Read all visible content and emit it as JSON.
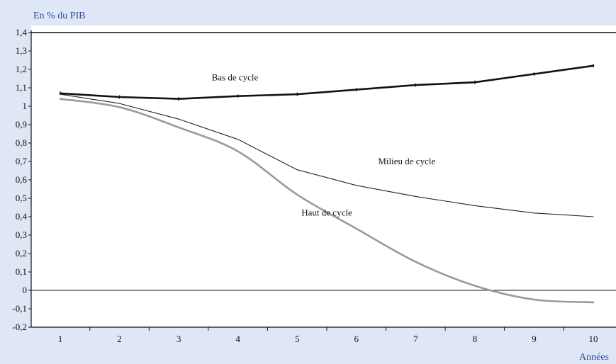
{
  "chart_data": {
    "type": "line",
    "title": "",
    "ylabel": "En % du PIB",
    "xlabel": "Années",
    "x": [
      1,
      2,
      3,
      4,
      5,
      6,
      7,
      8,
      9,
      10
    ],
    "x_ticks": [
      "1",
      "2",
      "3",
      "4",
      "5",
      "6",
      "7",
      "8",
      "9",
      "10"
    ],
    "ylim": [
      -0.2,
      1.4
    ],
    "y_ticks": [
      "-0,2",
      "-0,1",
      "0",
      "0,1",
      "0,2",
      "0,3",
      "0,4",
      "0,5",
      "0,6",
      "0,7",
      "0,8",
      "0,9",
      "1",
      "1,1",
      "1,2",
      "1,3",
      "1,4"
    ],
    "y_tick_values": [
      -0.2,
      -0.1,
      0,
      0.1,
      0.2,
      0.3,
      0.4,
      0.5,
      0.6,
      0.7,
      0.8,
      0.9,
      1.0,
      1.1,
      1.2,
      1.3,
      1.4
    ],
    "grid": false,
    "zero_line": true,
    "series": [
      {
        "name": "Bas de cycle",
        "values": [
          1.07,
          1.05,
          1.04,
          1.055,
          1.065,
          1.09,
          1.115,
          1.13,
          1.175,
          1.22
        ],
        "color": "#111111",
        "smooth": false,
        "label_at": [
          3.95,
          1.14
        ]
      },
      {
        "name": "Milieu de cycle",
        "values": [
          1.065,
          1.015,
          0.93,
          0.82,
          0.655,
          0.57,
          0.51,
          0.46,
          0.42,
          0.4
        ],
        "color": "#222222",
        "smooth": false,
        "label_at": [
          6.85,
          0.685
        ]
      },
      {
        "name": "Haut de cycle",
        "values": [
          1.04,
          0.995,
          0.885,
          0.755,
          0.52,
          0.335,
          0.155,
          0.025,
          -0.05,
          -0.065
        ],
        "color": "#9a9a9a",
        "smooth": true,
        "label_at": [
          5.5,
          0.405
        ]
      }
    ]
  }
}
